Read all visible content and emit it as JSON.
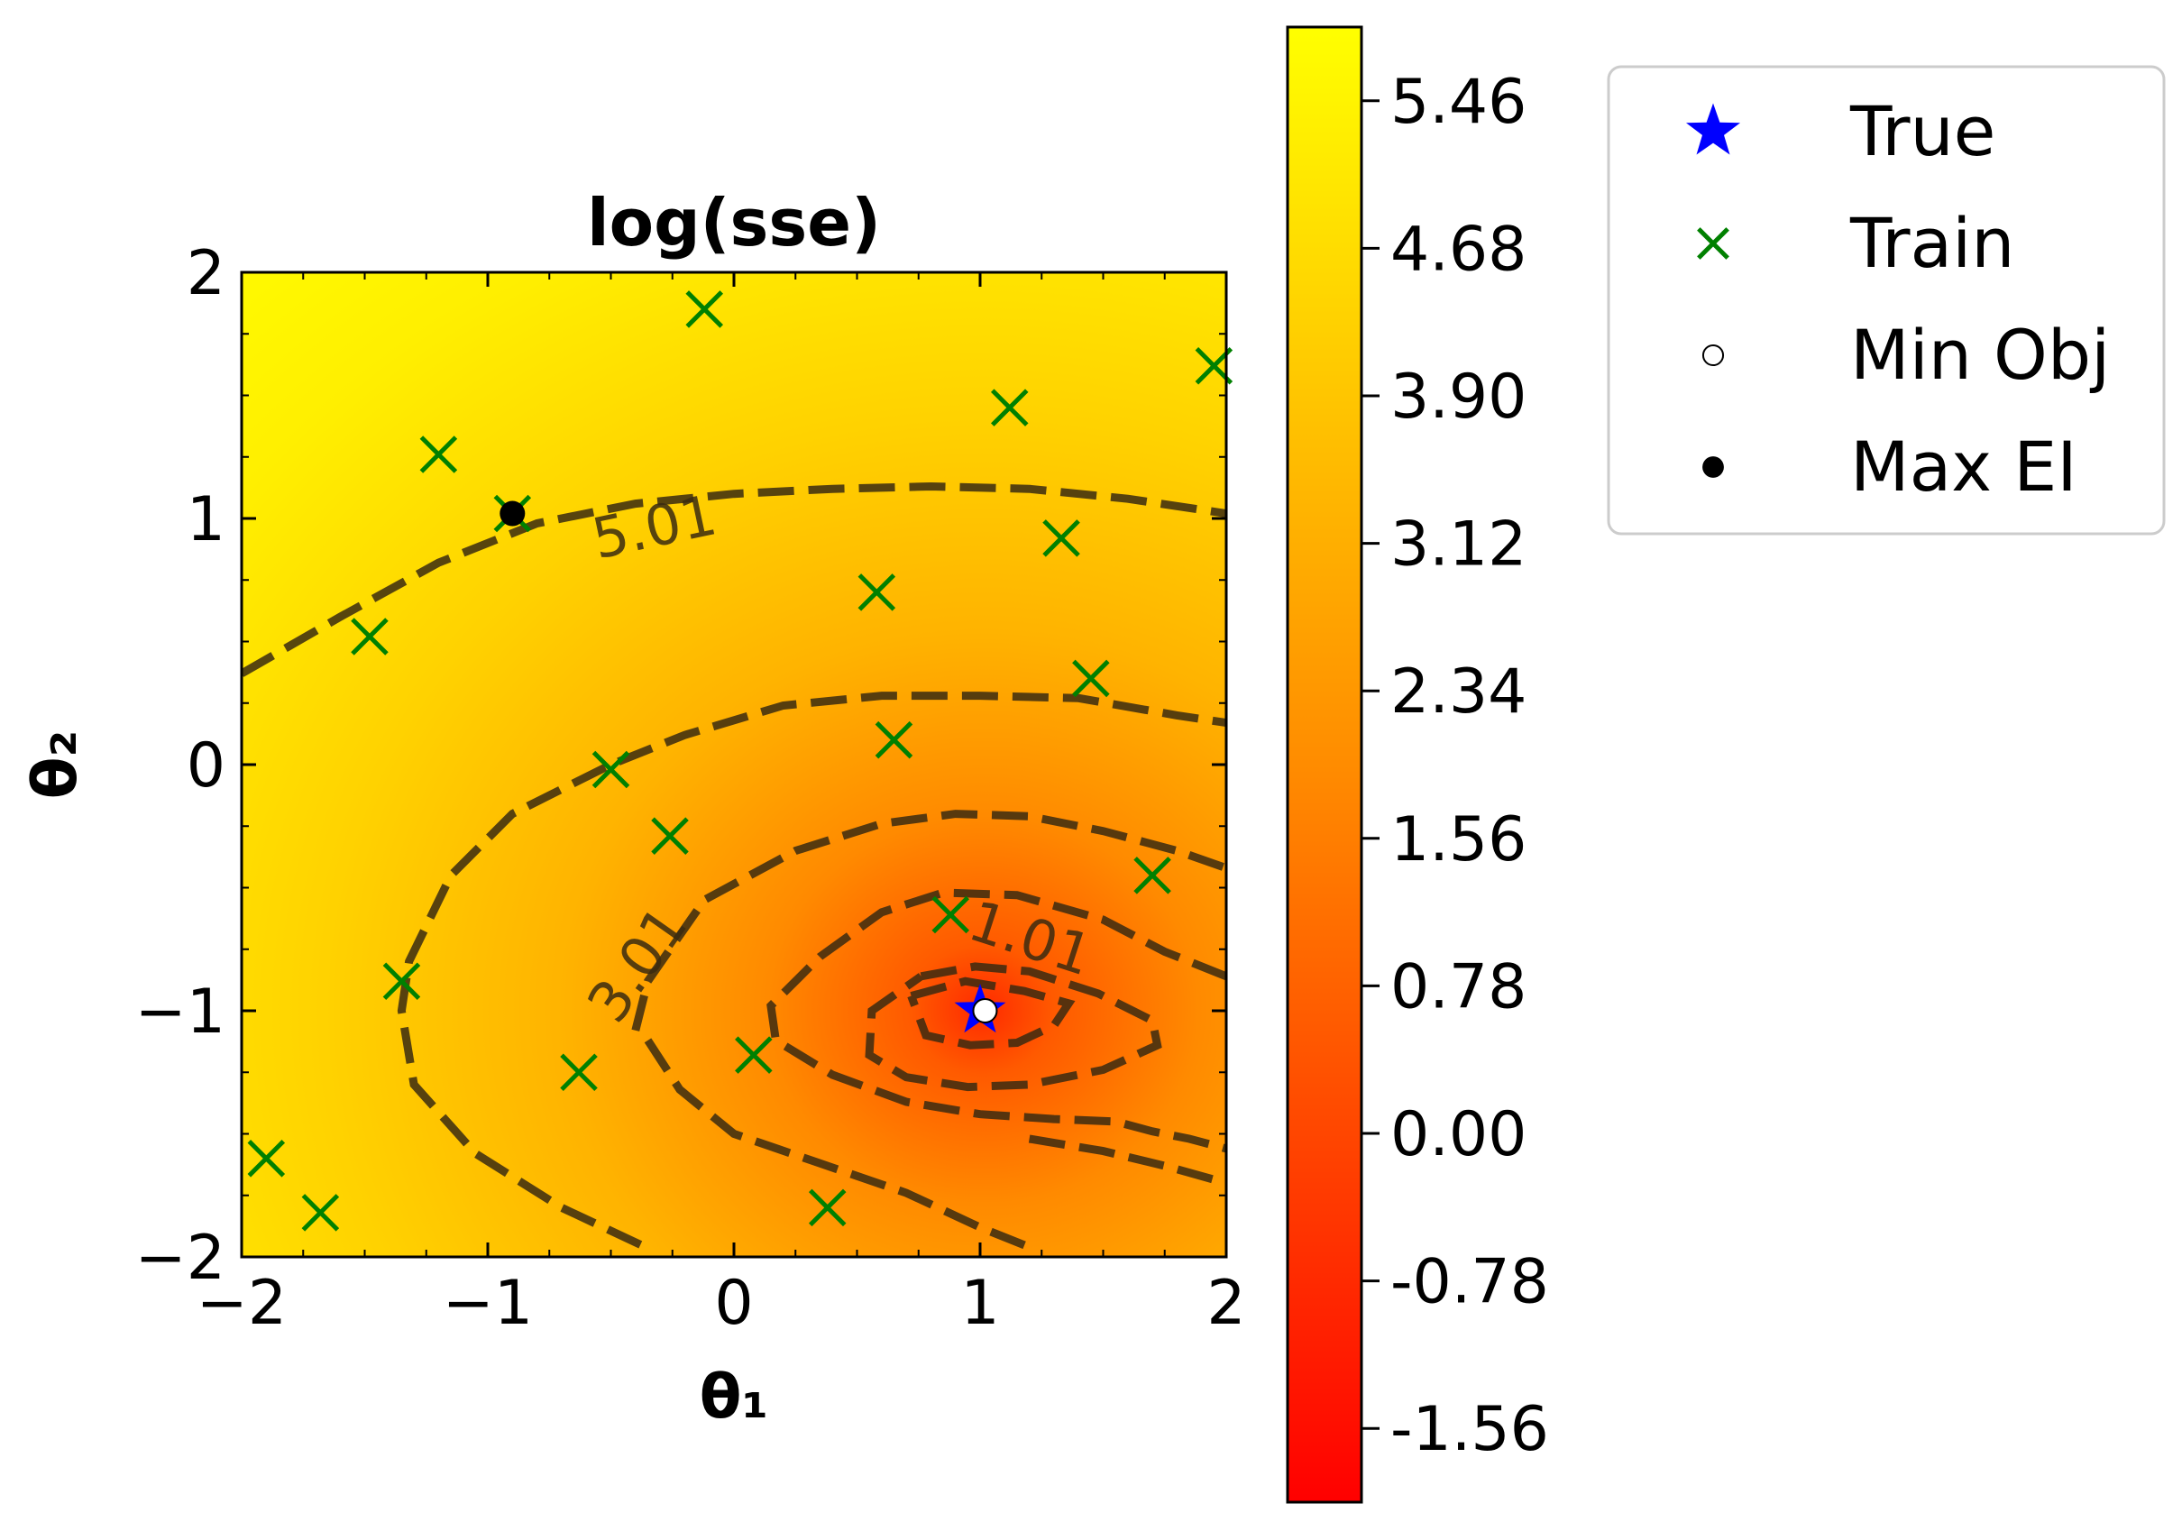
{
  "chart_data": {
    "type": "heatmap",
    "title": "log(sse)",
    "xlabel": "θ₁",
    "ylabel": "θ₂",
    "xlim": [
      -2,
      2
    ],
    "ylim": [
      -2,
      2
    ],
    "x_ticks": [
      -2,
      -1,
      0,
      1,
      2
    ],
    "y_ticks": [
      -2,
      -1,
      0,
      1,
      2
    ],
    "x_tick_labels": [
      "−2",
      "−1",
      "0",
      "1",
      "2"
    ],
    "y_tick_labels": [
      "−2",
      "−1",
      "0",
      "1",
      "2"
    ],
    "colormap": {
      "low": "#ff0000",
      "mid": "#ff8c00",
      "high": "#ffff00"
    },
    "colorbar": {
      "range": [
        -1.95,
        5.85
      ],
      "ticks": [
        5.46,
        4.68,
        3.9,
        3.12,
        2.34,
        1.56,
        0.78,
        0.0,
        -0.78,
        -1.56
      ],
      "tick_labels": [
        "5.46",
        "4.68",
        "3.90",
        "3.12",
        "2.34",
        "1.56",
        "0.78",
        "0.00",
        "-0.78",
        "-1.56"
      ]
    },
    "contour_labels": [
      {
        "text": "5.01",
        "x": -0.32,
        "y": 0.95,
        "angle": -12
      },
      {
        "text": "3.01",
        "x": -0.38,
        "y": -0.82,
        "angle": -55
      },
      {
        "text": "1.01",
        "x": 1.2,
        "y": -0.72,
        "angle": 18
      }
    ],
    "contours": [
      {
        "level": 5.01,
        "points": [
          [
            -2,
            0.37
          ],
          [
            -1.6,
            0.6
          ],
          [
            -1.2,
            0.82
          ],
          [
            -0.8,
            0.98
          ],
          [
            -0.4,
            1.06
          ],
          [
            0,
            1.1
          ],
          [
            0.4,
            1.12
          ],
          [
            0.8,
            1.13
          ],
          [
            1.2,
            1.12
          ],
          [
            1.6,
            1.08
          ],
          [
            2,
            1.02
          ]
        ]
      },
      {
        "level": 4.0,
        "points": [
          [
            -0.38,
            -1.95
          ],
          [
            -0.7,
            -1.8
          ],
          [
            -1.05,
            -1.58
          ],
          [
            -1.3,
            -1.3
          ],
          [
            -1.35,
            -1.0
          ],
          [
            -1.32,
            -0.8
          ],
          [
            -1.15,
            -0.45
          ],
          [
            -0.9,
            -0.2
          ],
          [
            -0.5,
            0.0
          ],
          [
            -0.2,
            0.12
          ],
          [
            0.2,
            0.24
          ],
          [
            0.6,
            0.28
          ],
          [
            1.0,
            0.28
          ],
          [
            1.4,
            0.27
          ],
          [
            1.8,
            0.2
          ],
          [
            2,
            0.17
          ]
        ]
      },
      {
        "level": 3.01,
        "points": [
          [
            -0.4,
            -1.08
          ],
          [
            -0.35,
            -0.88
          ],
          [
            -0.12,
            -0.55
          ],
          [
            0.25,
            -0.35
          ],
          [
            0.6,
            -0.24
          ],
          [
            0.9,
            -0.2
          ],
          [
            1.2,
            -0.21
          ],
          [
            1.5,
            -0.27
          ],
          [
            1.8,
            -0.35
          ],
          [
            2,
            -0.42
          ]
        ]
      },
      {
        "level": 2.5,
        "points": [
          [
            -0.35,
            -1.12
          ],
          [
            -0.22,
            -1.32
          ],
          [
            0.0,
            -1.5
          ],
          [
            0.35,
            -1.62
          ],
          [
            0.7,
            -1.74
          ],
          [
            1.0,
            -1.88
          ],
          [
            1.2,
            -1.96
          ]
        ]
      },
      {
        "level": 2.0,
        "points": [
          [
            1.2,
            -1.52
          ],
          [
            1.5,
            -1.57
          ],
          [
            1.75,
            -1.63
          ],
          [
            2,
            -1.7
          ]
        ]
      },
      {
        "level": 1.01,
        "points": [
          [
            2,
            -0.86
          ],
          [
            1.75,
            -0.76
          ],
          [
            1.5,
            -0.63
          ],
          [
            1.15,
            -0.53
          ],
          [
            0.85,
            -0.52
          ],
          [
            0.6,
            -0.6
          ],
          [
            0.35,
            -0.78
          ],
          [
            0.15,
            -0.98
          ],
          [
            0.17,
            -1.12
          ],
          [
            0.4,
            -1.26
          ],
          [
            0.7,
            -1.37
          ],
          [
            1.0,
            -1.42
          ],
          [
            1.3,
            -1.44
          ],
          [
            1.55,
            -1.45
          ],
          [
            1.7,
            -1.49
          ],
          [
            1.85,
            -1.52
          ],
          [
            2,
            -1.56
          ]
        ]
      },
      {
        "level": 0.3,
        "points": [
          [
            0.76,
            -0.86
          ],
          [
            0.98,
            -0.82
          ],
          [
            1.2,
            -0.84
          ],
          [
            1.48,
            -0.93
          ],
          [
            1.7,
            -1.04
          ],
          [
            1.72,
            -1.14
          ],
          [
            1.5,
            -1.24
          ],
          [
            1.2,
            -1.3
          ],
          [
            0.95,
            -1.31
          ],
          [
            0.7,
            -1.27
          ],
          [
            0.55,
            -1.18
          ],
          [
            0.56,
            -1.0
          ],
          [
            0.76,
            -0.86
          ]
        ]
      },
      {
        "level": -0.5,
        "points": [
          [
            0.72,
            -0.94
          ],
          [
            0.94,
            -0.88
          ],
          [
            1.18,
            -0.92
          ],
          [
            1.36,
            -0.97
          ],
          [
            1.3,
            -1.06
          ],
          [
            1.15,
            -1.13
          ],
          [
            0.96,
            -1.14
          ],
          [
            0.78,
            -1.1
          ],
          [
            0.72,
            -0.94
          ]
        ]
      }
    ],
    "series": [
      {
        "name": "True",
        "marker": "star",
        "color": "#0000ff",
        "points": [
          [
            1.0,
            -1.0
          ]
        ]
      },
      {
        "name": "Train",
        "marker": "x",
        "color": "#008000",
        "points": [
          [
            -0.12,
            1.85
          ],
          [
            1.12,
            1.45
          ],
          [
            1.95,
            1.62
          ],
          [
            -1.2,
            1.26
          ],
          [
            -0.9,
            1.02
          ],
          [
            1.33,
            0.92
          ],
          [
            -1.48,
            0.52
          ],
          [
            0.58,
            0.7
          ],
          [
            1.45,
            0.35
          ],
          [
            0.65,
            0.1
          ],
          [
            -0.5,
            -0.02
          ],
          [
            -0.26,
            -0.29
          ],
          [
            1.7,
            -0.45
          ],
          [
            0.88,
            -0.61
          ],
          [
            -1.35,
            -0.88
          ],
          [
            0.08,
            -1.18
          ],
          [
            -0.63,
            -1.25
          ],
          [
            -1.9,
            -1.6
          ],
          [
            -1.68,
            -1.82
          ],
          [
            0.38,
            -1.8
          ]
        ]
      },
      {
        "name": "Min Obj",
        "marker": "circle-open",
        "color": "#ffffff",
        "points": [
          [
            1.02,
            -1.0
          ]
        ]
      },
      {
        "name": "Max EI",
        "marker": "circle",
        "color": "#000000",
        "points": [
          [
            -0.9,
            1.02
          ]
        ]
      }
    ],
    "legend_placement": "outside-upper-right"
  }
}
